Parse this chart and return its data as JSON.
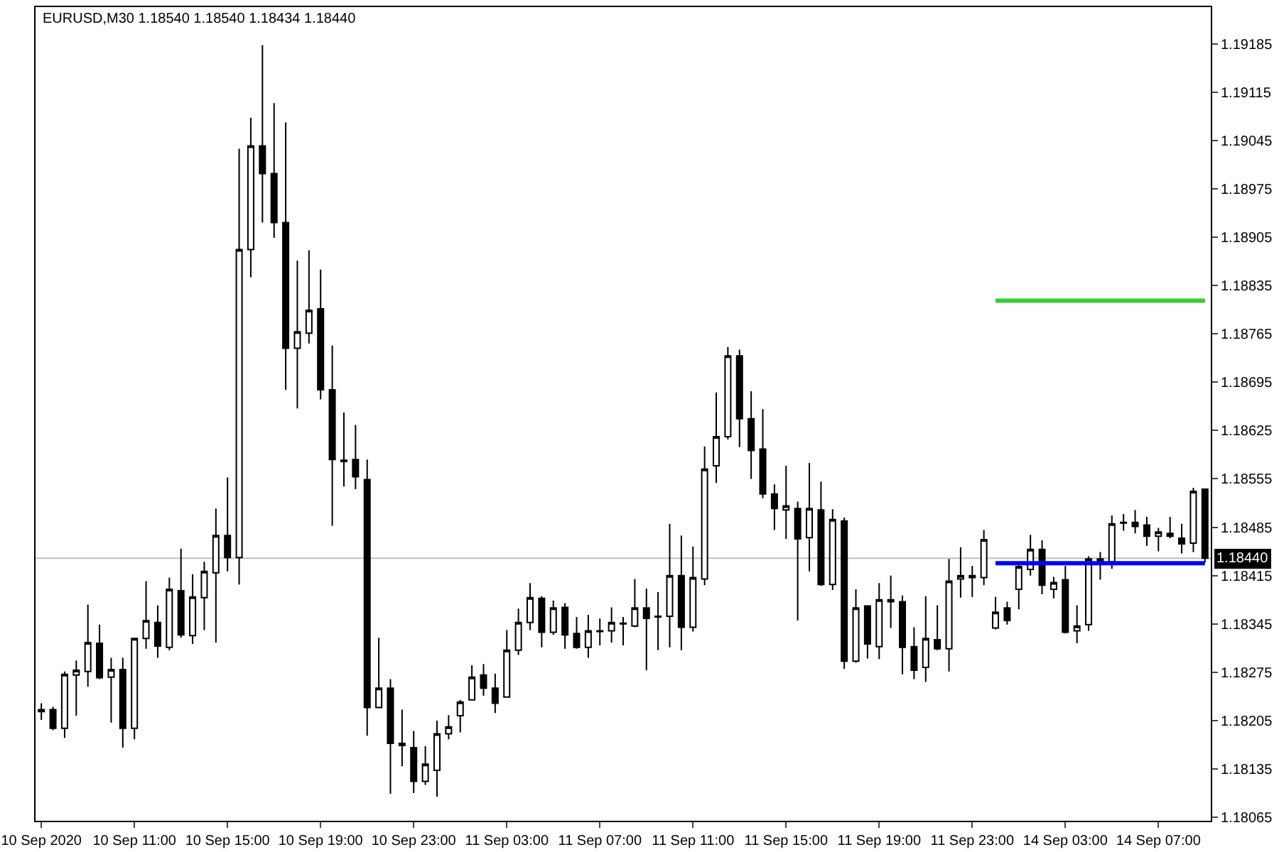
{
  "chart_data": {
    "type": "candlestick",
    "title": "EURUSD,M30 1.18540 1.18540 1.18434 1.18440",
    "categories": [
      "10 Sep 2020",
      null,
      null,
      null,
      null,
      null,
      null,
      null,
      "10 Sep 11:00",
      null,
      null,
      null,
      null,
      null,
      null,
      null,
      "10 Sep 15:00",
      null,
      null,
      null,
      null,
      null,
      null,
      null,
      "10 Sep 19:00",
      null,
      null,
      null,
      null,
      null,
      null,
      null,
      "10 Sep 23:00",
      null,
      null,
      null,
      null,
      null,
      null,
      null,
      "11 Sep 03:00",
      null,
      null,
      null,
      null,
      null,
      null,
      null,
      "11 Sep 07:00",
      null,
      null,
      null,
      null,
      null,
      null,
      null,
      "11 Sep 11:00",
      null,
      null,
      null,
      null,
      null,
      null,
      null,
      "11 Sep 15:00",
      null,
      null,
      null,
      null,
      null,
      null,
      null,
      "11 Sep 19:00",
      null,
      null,
      null,
      null,
      null,
      null,
      null,
      "11 Sep 23:00",
      null,
      null,
      null,
      null,
      null,
      null,
      null,
      "14 Sep 03:00",
      null,
      null,
      null,
      null,
      null,
      null,
      null,
      "14 Sep 07:00",
      null,
      null,
      null,
      null
    ],
    "ohlc": [
      [
        1.18221,
        1.1823,
        1.18206,
        1.18218
      ],
      [
        1.18221,
        1.18225,
        1.18191,
        1.18194
      ],
      [
        1.18194,
        1.18276,
        1.1818,
        1.18272
      ],
      [
        1.18271,
        1.18292,
        1.18212,
        1.18278
      ],
      [
        1.18276,
        1.18373,
        1.18254,
        1.18318
      ],
      [
        1.18317,
        1.18344,
        1.18265,
        1.18267
      ],
      [
        1.18268,
        1.18296,
        1.18202,
        1.18279
      ],
      [
        1.18279,
        1.18296,
        1.18166,
        1.18194
      ],
      [
        1.18194,
        1.18325,
        1.18178,
        1.18324
      ],
      [
        1.18324,
        1.18407,
        1.18309,
        1.1835
      ],
      [
        1.18347,
        1.18372,
        1.18296,
        1.18313
      ],
      [
        1.18311,
        1.18412,
        1.18307,
        1.18395
      ],
      [
        1.18393,
        1.18454,
        1.18325,
        1.18329
      ],
      [
        1.18328,
        1.18417,
        1.18316,
        1.18384
      ],
      [
        1.18383,
        1.18435,
        1.18336,
        1.18421
      ],
      [
        1.18419,
        1.18512,
        1.18318,
        1.18473
      ],
      [
        1.18473,
        1.18557,
        1.18421,
        1.18441
      ],
      [
        1.18441,
        1.19033,
        1.18402,
        1.18887
      ],
      [
        1.18887,
        1.19078,
        1.18847,
        1.19037
      ],
      [
        1.19037,
        1.19183,
        1.18926,
        1.18997
      ],
      [
        1.18997,
        1.19099,
        1.18904,
        1.18926
      ],
      [
        1.18926,
        1.19071,
        1.18684,
        1.18744
      ],
      [
        1.18744,
        1.18871,
        1.18657,
        1.18768
      ],
      [
        1.18766,
        1.18886,
        1.18751,
        1.18799
      ],
      [
        1.18801,
        1.18858,
        1.1867,
        1.18684
      ],
      [
        1.18684,
        1.18748,
        1.18487,
        1.18583
      ],
      [
        1.18582,
        1.18651,
        1.18544,
        1.1858
      ],
      [
        1.18583,
        1.18633,
        1.1854,
        1.18558
      ],
      [
        1.18554,
        1.18583,
        1.18183,
        1.18224
      ],
      [
        1.18224,
        1.18325,
        1.18224,
        1.18252
      ],
      [
        1.18252,
        1.18265,
        1.18099,
        1.18172
      ],
      [
        1.18172,
        1.18221,
        1.18139,
        1.18169
      ],
      [
        1.18166,
        1.1819,
        1.181,
        1.18117
      ],
      [
        1.18117,
        1.18168,
        1.18112,
        1.18142
      ],
      [
        1.18133,
        1.18205,
        1.18095,
        1.18186
      ],
      [
        1.18186,
        1.18213,
        1.18178,
        1.18196
      ],
      [
        1.18212,
        1.18235,
        1.18188,
        1.18232
      ],
      [
        1.18235,
        1.18285,
        1.18235,
        1.18268
      ],
      [
        1.18271,
        1.18287,
        1.18241,
        1.18252
      ],
      [
        1.18252,
        1.18273,
        1.18216,
        1.1823
      ],
      [
        1.18239,
        1.18336,
        1.18239,
        1.18307
      ],
      [
        1.18307,
        1.18367,
        1.183,
        1.18347
      ],
      [
        1.18347,
        1.18404,
        1.18336,
        1.18383
      ],
      [
        1.18382,
        1.18385,
        1.18311,
        1.18333
      ],
      [
        1.18333,
        1.18379,
        1.18329,
        1.18368
      ],
      [
        1.18369,
        1.18375,
        1.18309,
        1.18329
      ],
      [
        1.18331,
        1.18355,
        1.18309,
        1.18311
      ],
      [
        1.18311,
        1.18358,
        1.18296,
        1.18335
      ],
      [
        1.18335,
        1.18353,
        1.18314,
        1.18334
      ],
      [
        1.18335,
        1.18369,
        1.18318,
        1.18347
      ],
      [
        1.18345,
        1.18355,
        1.18314,
        1.18346
      ],
      [
        1.18342,
        1.1841,
        1.1834,
        1.18368
      ],
      [
        1.18368,
        1.18396,
        1.18278,
        1.18353
      ],
      [
        1.18356,
        1.18391,
        1.18307,
        1.18355
      ],
      [
        1.18356,
        1.1849,
        1.18311,
        1.18415
      ],
      [
        1.18415,
        1.18473,
        1.18307,
        1.1834
      ],
      [
        1.1834,
        1.18457,
        1.18334,
        1.18412
      ],
      [
        1.1841,
        1.18602,
        1.18401,
        1.18569
      ],
      [
        1.18574,
        1.1868,
        1.18549,
        1.18616
      ],
      [
        1.18616,
        1.18746,
        1.18612,
        1.18733
      ],
      [
        1.18733,
        1.18742,
        1.18601,
        1.18642
      ],
      [
        1.18642,
        1.18682,
        1.18555,
        1.18596
      ],
      [
        1.18598,
        1.18656,
        1.18527,
        1.18533
      ],
      [
        1.18533,
        1.18547,
        1.18481,
        1.18512
      ],
      [
        1.1851,
        1.18574,
        1.18468,
        1.18516
      ],
      [
        1.18512,
        1.18522,
        1.1835,
        1.18468
      ],
      [
        1.1847,
        1.18578,
        1.18421,
        1.18512
      ],
      [
        1.1851,
        1.18551,
        1.184,
        1.18402
      ],
      [
        1.18402,
        1.18511,
        1.18394,
        1.18496
      ],
      [
        1.18494,
        1.18499,
        1.1828,
        1.18291
      ],
      [
        1.18291,
        1.18395,
        1.18289,
        1.18368
      ],
      [
        1.18371,
        1.18371,
        1.18295,
        1.18316
      ],
      [
        1.18312,
        1.18404,
        1.18294,
        1.1838
      ],
      [
        1.1838,
        1.18415,
        1.18339,
        1.18377
      ],
      [
        1.18377,
        1.18386,
        1.18272,
        1.18311
      ],
      [
        1.18312,
        1.1834,
        1.18265,
        1.18278
      ],
      [
        1.18282,
        1.18385,
        1.18261,
        1.18324
      ],
      [
        1.18322,
        1.18372,
        1.18307,
        1.18309
      ],
      [
        1.18309,
        1.18439,
        1.18276,
        1.18407
      ],
      [
        1.1841,
        1.18456,
        1.18383,
        1.18415
      ],
      [
        1.18415,
        1.18429,
        1.18384,
        1.18412
      ],
      [
        1.18412,
        1.18481,
        1.18401,
        1.18467
      ],
      [
        1.18339,
        1.18384,
        1.18337,
        1.18362
      ],
      [
        1.18368,
        1.18377,
        1.18344,
        1.1835
      ],
      [
        1.18395,
        1.18435,
        1.18366,
        1.18428
      ],
      [
        1.18424,
        1.18474,
        1.18415,
        1.18453
      ],
      [
        1.18453,
        1.18466,
        1.18388,
        1.18401
      ],
      [
        1.18395,
        1.18413,
        1.18382,
        1.18405
      ],
      [
        1.18409,
        1.18429,
        1.18331,
        1.18333
      ],
      [
        1.18335,
        1.18372,
        1.18317,
        1.18342
      ],
      [
        1.18344,
        1.18443,
        1.18335,
        1.18439
      ],
      [
        1.18439,
        1.18449,
        1.18409,
        1.18435
      ],
      [
        1.18435,
        1.18502,
        1.18425,
        1.1849
      ],
      [
        1.18492,
        1.18504,
        1.1848,
        1.18491
      ],
      [
        1.18492,
        1.1851,
        1.18476,
        1.18486
      ],
      [
        1.18488,
        1.185,
        1.18458,
        1.18472
      ],
      [
        1.18472,
        1.18484,
        1.1845,
        1.18478
      ],
      [
        1.18476,
        1.185,
        1.18469,
        1.18472
      ],
      [
        1.18469,
        1.1849,
        1.18447,
        1.18461
      ],
      [
        1.18462,
        1.18542,
        1.18449,
        1.18537
      ],
      [
        1.1854,
        1.1854,
        1.18434,
        1.1844
      ]
    ],
    "series": [
      {
        "type": "line",
        "color": "#33cc33",
        "values": [
          null,
          null,
          null,
          null,
          null,
          null,
          null,
          null,
          null,
          null,
          null,
          null,
          null,
          null,
          null,
          null,
          null,
          null,
          null,
          null,
          null,
          null,
          null,
          null,
          null,
          null,
          null,
          null,
          null,
          null,
          null,
          null,
          null,
          null,
          null,
          null,
          null,
          null,
          null,
          null,
          null,
          null,
          null,
          null,
          null,
          null,
          null,
          null,
          null,
          null,
          null,
          null,
          null,
          null,
          null,
          null,
          null,
          null,
          null,
          null,
          null,
          null,
          null,
          null,
          null,
          null,
          null,
          null,
          null,
          null,
          null,
          null,
          null,
          null,
          null,
          null,
          null,
          null,
          null,
          null,
          null,
          null,
          1.18813,
          1.18813,
          1.18813,
          1.18813,
          1.18813,
          1.18813,
          1.18813,
          1.18813,
          1.18813,
          1.18813,
          1.18813,
          1.18813,
          1.18813,
          1.18813,
          1.18813,
          1.18813,
          1.18813,
          1.18813,
          1.18813
        ]
      },
      {
        "type": "line",
        "color": "#0000ff",
        "values": [
          null,
          null,
          null,
          null,
          null,
          null,
          null,
          null,
          null,
          null,
          null,
          null,
          null,
          null,
          null,
          null,
          null,
          null,
          null,
          null,
          null,
          null,
          null,
          null,
          null,
          null,
          null,
          null,
          null,
          null,
          null,
          null,
          null,
          null,
          null,
          null,
          null,
          null,
          null,
          null,
          null,
          null,
          null,
          null,
          null,
          null,
          null,
          null,
          null,
          null,
          null,
          null,
          null,
          null,
          null,
          null,
          null,
          null,
          null,
          null,
          null,
          null,
          null,
          null,
          null,
          null,
          null,
          null,
          null,
          null,
          null,
          null,
          null,
          null,
          null,
          null,
          null,
          null,
          null,
          null,
          null,
          null,
          1.18433,
          1.18433,
          1.18433,
          1.18433,
          1.18433,
          1.18433,
          1.18433,
          1.18433,
          1.18433,
          1.18433,
          1.18433,
          1.18433,
          1.18433,
          1.18433,
          1.18433,
          1.18433,
          1.18433,
          1.18433,
          1.18433
        ]
      }
    ],
    "ref_lines": [
      {
        "axis": "y",
        "value": 1.1844,
        "label": "1.18440",
        "color": "#c0c0c0"
      }
    ],
    "ylim": [
      1.1806,
      1.19238
    ],
    "yticks": [
      {
        "value": 1.19185,
        "label": "1.19185"
      },
      {
        "value": 1.19115,
        "label": "1.19115"
      },
      {
        "value": 1.19045,
        "label": "1.19045"
      },
      {
        "value": 1.18975,
        "label": "1.18975"
      },
      {
        "value": 1.18905,
        "label": "1.18905"
      },
      {
        "value": 1.18835,
        "label": "1.18835"
      },
      {
        "value": 1.18765,
        "label": "1.18765"
      },
      {
        "value": 1.18695,
        "label": "1.18695"
      },
      {
        "value": 1.18625,
        "label": "1.18625"
      },
      {
        "value": 1.18555,
        "label": "1.18555"
      },
      {
        "value": 1.18485,
        "label": "1.18485"
      },
      {
        "value": 1.18415,
        "label": "1.18415"
      },
      {
        "value": 1.18345,
        "label": "1.18345"
      },
      {
        "value": 1.18275,
        "label": "1.18275"
      },
      {
        "value": 1.18205,
        "label": "1.18205"
      },
      {
        "value": 1.18135,
        "label": "1.18135"
      },
      {
        "value": 1.18065,
        "label": "1.18065"
      }
    ],
    "grid": false
  }
}
